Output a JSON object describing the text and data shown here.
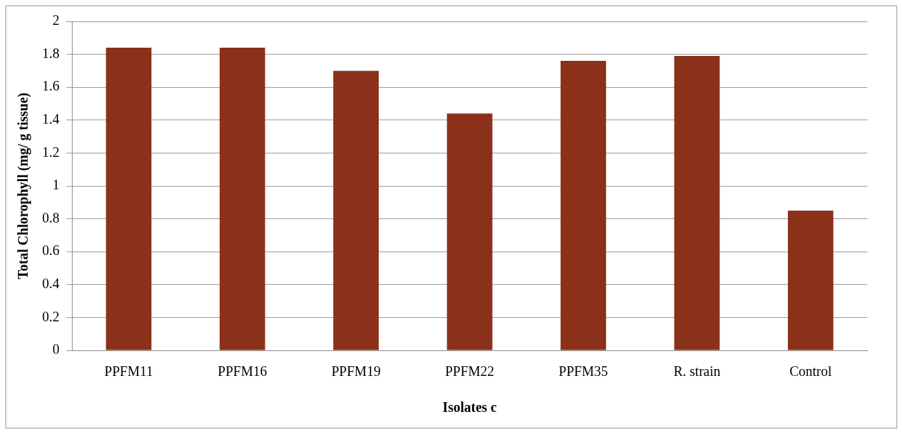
{
  "chart_data": {
    "type": "bar",
    "xlabel": "Isolates c",
    "ylabel": "Total Chlorophyll (mg/ g tissue)",
    "categories": [
      "PPFM11",
      "PPFM16",
      "PPFM19",
      "PPFM22",
      "PPFM35",
      "R. strain",
      "Control"
    ],
    "values": [
      1.84,
      1.84,
      1.7,
      1.44,
      1.76,
      1.79,
      0.85
    ],
    "color": "#8b3119",
    "ylim": [
      0,
      2
    ],
    "yticks": [
      0,
      0.2,
      0.4,
      0.6,
      0.8,
      1,
      1.2,
      1.4,
      1.6,
      1.8,
      2
    ],
    "grid": "y",
    "legend": false
  }
}
